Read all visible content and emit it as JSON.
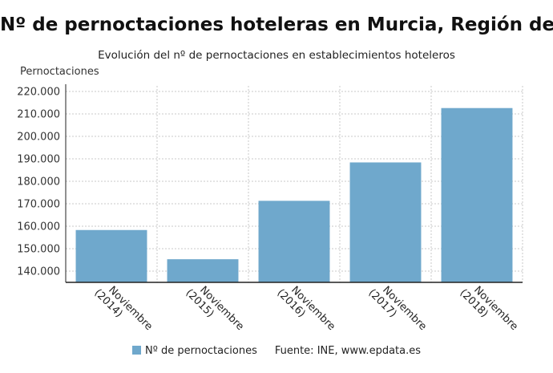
{
  "chart_data": {
    "type": "bar",
    "title": "Nº de pernoctaciones hoteleras en Murcia, Región de",
    "subtitle": "Evolución del nº de pernoctaciones en establecimientos hoteleros",
    "ylabel": "Pernoctaciones",
    "xlabel": "",
    "categories": [
      "Noviembre (2014)",
      "Noviembre (2015)",
      "Noviembre (2016)",
      "Noviembre (2017)",
      "Noviembre (2018)"
    ],
    "category_lines": [
      [
        "Noviembre",
        "(2014)"
      ],
      [
        "Noviembre",
        "(2015)"
      ],
      [
        "Noviembre",
        "(2016)"
      ],
      [
        "Noviembre",
        "(2017)"
      ],
      [
        "Noviembre",
        "(2018)"
      ]
    ],
    "series": [
      {
        "name": "Nº de pernoctaciones",
        "color": "#6fa8cc",
        "values": [
          158300,
          145300,
          171300,
          188400,
          212600
        ]
      }
    ],
    "ylim": [
      135000,
      222500
    ],
    "yticks": [
      140000,
      150000,
      160000,
      170000,
      180000,
      190000,
      200000,
      210000,
      220000
    ],
    "ytick_labels": [
      "140.000",
      "150.000",
      "160.000",
      "170.000",
      "180.000",
      "190.000",
      "200.000",
      "210.000",
      "220.000"
    ],
    "grid": true,
    "legend_position": "bottom",
    "source": "Fuente: INE, www.epdata.es"
  }
}
